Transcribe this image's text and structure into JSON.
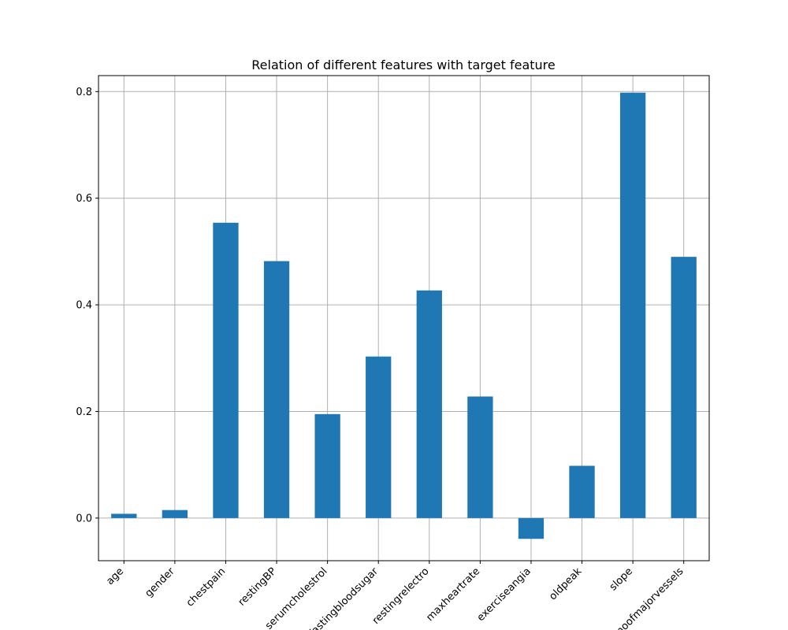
{
  "chart_data": {
    "type": "bar",
    "title": "Relation of different features with target feature",
    "xlabel": "",
    "ylabel": "",
    "categories": [
      "age",
      "gender",
      "chestpain",
      "restingBP",
      "serumcholestrol",
      "fastingbloodsugar",
      "restingrelectro",
      "maxheartrate",
      "exerciseangia",
      "oldpeak",
      "slope",
      "noofmajorvessels"
    ],
    "values": [
      0.008,
      0.015,
      0.554,
      0.482,
      0.195,
      0.303,
      0.427,
      0.228,
      -0.039,
      0.098,
      0.798,
      0.49
    ],
    "ylim": [
      -0.08,
      0.83
    ],
    "yticks": [
      0.0,
      0.2,
      0.4,
      0.6,
      0.8
    ],
    "ytick_labels": [
      "0.0",
      "0.2",
      "0.4",
      "0.6",
      "0.8"
    ],
    "grid": true,
    "bar_color": "#1f77b4"
  }
}
